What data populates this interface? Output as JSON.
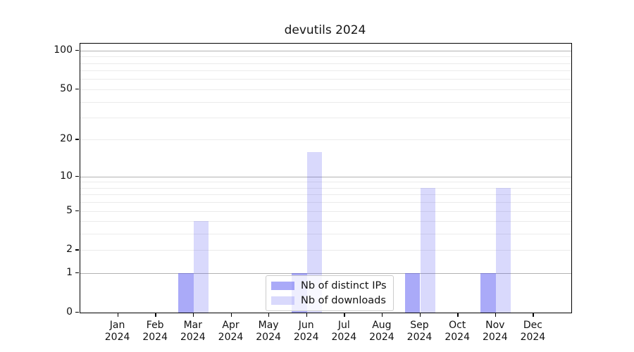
{
  "chart_data": {
    "type": "bar",
    "title": "devutils 2024",
    "categories": [
      {
        "month": "Jan",
        "year": "2024"
      },
      {
        "month": "Feb",
        "year": "2024"
      },
      {
        "month": "Mar",
        "year": "2024"
      },
      {
        "month": "Apr",
        "year": "2024"
      },
      {
        "month": "May",
        "year": "2024"
      },
      {
        "month": "Jun",
        "year": "2024"
      },
      {
        "month": "Jul",
        "year": "2024"
      },
      {
        "month": "Aug",
        "year": "2024"
      },
      {
        "month": "Sep",
        "year": "2024"
      },
      {
        "month": "Oct",
        "year": "2024"
      },
      {
        "month": "Nov",
        "year": "2024"
      },
      {
        "month": "Dec",
        "year": "2024"
      }
    ],
    "series": [
      {
        "name": "Nb of distinct IPs",
        "color": "rgba(66,66,240,0.45)",
        "values": [
          0,
          0,
          1,
          0,
          0,
          1,
          0,
          0,
          1,
          0,
          1,
          0
        ]
      },
      {
        "name": "Nb of downloads",
        "color": "rgba(66,66,240,0.20)",
        "values": [
          0,
          0,
          4,
          0,
          0,
          16,
          0,
          0,
          8,
          0,
          8,
          0
        ]
      }
    ],
    "yscale": "symlog (log10(1+v))",
    "ylim": [
      0,
      113
    ],
    "ytick_labels": [
      0,
      1,
      2,
      5,
      10,
      20,
      50,
      100
    ],
    "grid": "on",
    "grid_major": [
      1,
      10,
      100
    ],
    "grid_minor": [
      2,
      3,
      4,
      5,
      6,
      7,
      8,
      9,
      20,
      30,
      40,
      50,
      60,
      70,
      80,
      90
    ],
    "legend_position": "lower center",
    "colors": {
      "major_grid": "#b2b2b2",
      "minor_grid": "#ebebeb",
      "spine": "#000000",
      "bar_base": "#4242f0"
    }
  }
}
